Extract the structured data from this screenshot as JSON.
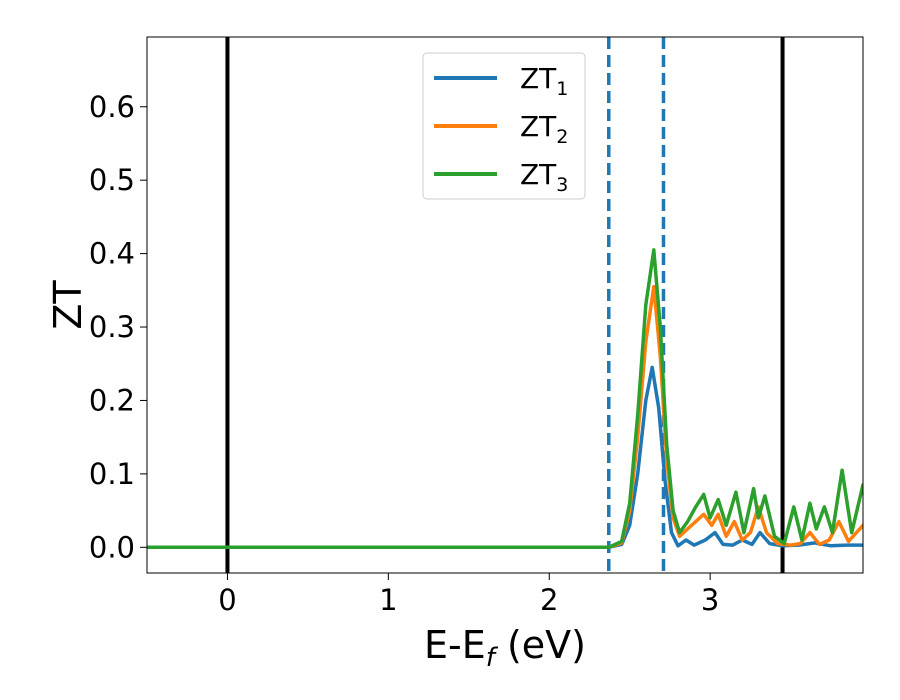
{
  "chart_data": {
    "type": "line",
    "title": "",
    "xlabel": "E-E",
    "xlabel_sub": "f",
    "xlabel_unit": " (eV)",
    "ylabel": "ZT",
    "xlim": [
      -0.5,
      3.95
    ],
    "ylim": [
      -0.035,
      0.695
    ],
    "xticks": [
      {
        "value": 0,
        "label": "0"
      },
      {
        "value": 1,
        "label": "1"
      },
      {
        "value": 2,
        "label": "2"
      },
      {
        "value": 3,
        "label": "3"
      }
    ],
    "yticks": [
      {
        "value": 0.0,
        "label": "0.0"
      },
      {
        "value": 0.1,
        "label": "0.1"
      },
      {
        "value": 0.2,
        "label": "0.2"
      },
      {
        "value": 0.3,
        "label": "0.3"
      },
      {
        "value": 0.4,
        "label": "0.4"
      },
      {
        "value": 0.5,
        "label": "0.5"
      },
      {
        "value": 0.6,
        "label": "0.6"
      }
    ],
    "grid": false,
    "legend_position": "top-center",
    "vertical_lines": [
      {
        "x": 0.0,
        "style": "solid",
        "color": "#000000"
      },
      {
        "x": 3.45,
        "style": "solid",
        "color": "#000000"
      },
      {
        "x": 2.37,
        "style": "dashed",
        "color": "#1f77b4"
      },
      {
        "x": 2.71,
        "style": "dashed",
        "color": "#1f77b4"
      }
    ],
    "series": [
      {
        "name": "ZT",
        "name_sub": "1",
        "color": "#1f77b4",
        "points": [
          [
            -0.5,
            0
          ],
          [
            2.37,
            0
          ],
          [
            2.45,
            0.004
          ],
          [
            2.5,
            0.03
          ],
          [
            2.55,
            0.1
          ],
          [
            2.6,
            0.2
          ],
          [
            2.64,
            0.245
          ],
          [
            2.68,
            0.19
          ],
          [
            2.72,
            0.09
          ],
          [
            2.76,
            0.02
          ],
          [
            2.8,
            0.002
          ],
          [
            2.85,
            0.01
          ],
          [
            2.9,
            0.003
          ],
          [
            2.97,
            0.01
          ],
          [
            3.03,
            0.02
          ],
          [
            3.08,
            0.004
          ],
          [
            3.14,
            0.003
          ],
          [
            3.2,
            0.01
          ],
          [
            3.26,
            0.004
          ],
          [
            3.31,
            0.02
          ],
          [
            3.37,
            0.005
          ],
          [
            3.45,
            0.002
          ],
          [
            3.55,
            0.003
          ],
          [
            3.65,
            0.006
          ],
          [
            3.75,
            0.002
          ],
          [
            3.85,
            0.003
          ],
          [
            3.95,
            0.003
          ]
        ]
      },
      {
        "name": "ZT",
        "name_sub": "2",
        "color": "#ff7f0e",
        "points": [
          [
            -0.5,
            0
          ],
          [
            2.37,
            0
          ],
          [
            2.45,
            0.006
          ],
          [
            2.5,
            0.05
          ],
          [
            2.55,
            0.15
          ],
          [
            2.6,
            0.28
          ],
          [
            2.65,
            0.355
          ],
          [
            2.69,
            0.26
          ],
          [
            2.73,
            0.12
          ],
          [
            2.77,
            0.04
          ],
          [
            2.81,
            0.015
          ],
          [
            2.86,
            0.025
          ],
          [
            2.91,
            0.035
          ],
          [
            2.96,
            0.045
          ],
          [
            3.01,
            0.03
          ],
          [
            3.05,
            0.045
          ],
          [
            3.1,
            0.015
          ],
          [
            3.15,
            0.035
          ],
          [
            3.2,
            0.01
          ],
          [
            3.25,
            0.02
          ],
          [
            3.3,
            0.055
          ],
          [
            3.35,
            0.02
          ],
          [
            3.42,
            0.005
          ],
          [
            3.5,
            0.003
          ],
          [
            3.56,
            0.005
          ],
          [
            3.62,
            0.02
          ],
          [
            3.68,
            0.004
          ],
          [
            3.74,
            0.01
          ],
          [
            3.8,
            0.035
          ],
          [
            3.86,
            0.008
          ],
          [
            3.95,
            0.03
          ]
        ]
      },
      {
        "name": "ZT",
        "name_sub": "3",
        "color": "#2ca02c",
        "points": [
          [
            -0.5,
            0
          ],
          [
            2.37,
            0
          ],
          [
            2.45,
            0.008
          ],
          [
            2.5,
            0.06
          ],
          [
            2.55,
            0.18
          ],
          [
            2.6,
            0.33
          ],
          [
            2.65,
            0.405
          ],
          [
            2.69,
            0.3
          ],
          [
            2.73,
            0.14
          ],
          [
            2.77,
            0.05
          ],
          [
            2.81,
            0.02
          ],
          [
            2.86,
            0.035
          ],
          [
            2.91,
            0.055
          ],
          [
            2.96,
            0.072
          ],
          [
            3.0,
            0.04
          ],
          [
            3.05,
            0.065
          ],
          [
            3.1,
            0.03
          ],
          [
            3.16,
            0.075
          ],
          [
            3.21,
            0.02
          ],
          [
            3.27,
            0.08
          ],
          [
            3.3,
            0.04
          ],
          [
            3.34,
            0.07
          ],
          [
            3.4,
            0.015
          ],
          [
            3.46,
            0.005
          ],
          [
            3.52,
            0.055
          ],
          [
            3.57,
            0.01
          ],
          [
            3.62,
            0.06
          ],
          [
            3.66,
            0.025
          ],
          [
            3.71,
            0.055
          ],
          [
            3.76,
            0.02
          ],
          [
            3.82,
            0.105
          ],
          [
            3.88,
            0.02
          ],
          [
            3.95,
            0.085
          ]
        ]
      }
    ]
  }
}
